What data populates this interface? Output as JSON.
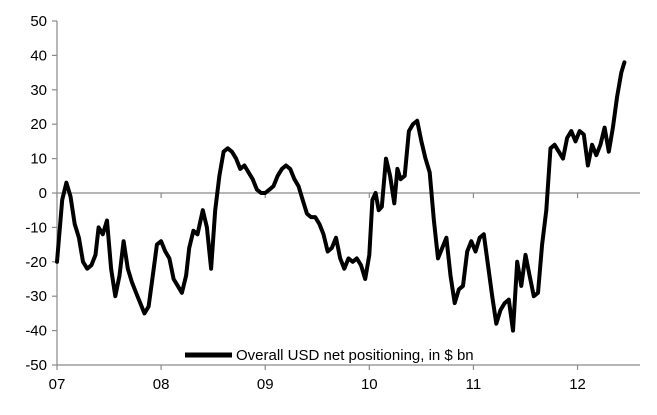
{
  "chart_data": {
    "type": "line",
    "title": "",
    "xlabel": "",
    "ylabel": "",
    "ylim": [
      -50,
      50
    ],
    "yticks": [
      50,
      40,
      30,
      20,
      10,
      0,
      -10,
      -20,
      -30,
      -40,
      -50
    ],
    "xlim": [
      2007.0,
      2012.6
    ],
    "xticks": [
      {
        "value": 2007.0,
        "label": "07"
      },
      {
        "value": 2008.0,
        "label": "08"
      },
      {
        "value": 2009.0,
        "label": "09"
      },
      {
        "value": 2010.0,
        "label": "10"
      },
      {
        "value": 2011.0,
        "label": "11"
      },
      {
        "value": 2012.0,
        "label": "12"
      }
    ],
    "grid": false,
    "legend_position": "bottom-center",
    "series": [
      {
        "name": "Overall USD net positioning, in $ bn",
        "color": "#000000",
        "points": [
          [
            2007.0,
            -20
          ],
          [
            2007.05,
            -2
          ],
          [
            2007.09,
            3
          ],
          [
            2007.13,
            -1
          ],
          [
            2007.17,
            -9
          ],
          [
            2007.21,
            -13
          ],
          [
            2007.25,
            -20
          ],
          [
            2007.29,
            -22
          ],
          [
            2007.33,
            -21
          ],
          [
            2007.37,
            -18
          ],
          [
            2007.4,
            -10
          ],
          [
            2007.44,
            -12
          ],
          [
            2007.48,
            -8
          ],
          [
            2007.52,
            -22
          ],
          [
            2007.56,
            -30
          ],
          [
            2007.6,
            -24
          ],
          [
            2007.64,
            -14
          ],
          [
            2007.68,
            -22
          ],
          [
            2007.72,
            -26
          ],
          [
            2007.76,
            -29
          ],
          [
            2007.8,
            -32
          ],
          [
            2007.84,
            -35
          ],
          [
            2007.88,
            -33
          ],
          [
            2007.92,
            -24
          ],
          [
            2007.96,
            -15
          ],
          [
            2008.0,
            -14
          ],
          [
            2008.04,
            -17
          ],
          [
            2008.08,
            -19
          ],
          [
            2008.12,
            -25
          ],
          [
            2008.16,
            -27
          ],
          [
            2008.2,
            -29
          ],
          [
            2008.24,
            -24
          ],
          [
            2008.27,
            -16
          ],
          [
            2008.31,
            -11
          ],
          [
            2008.35,
            -12
          ],
          [
            2008.4,
            -5
          ],
          [
            2008.44,
            -10
          ],
          [
            2008.48,
            -22
          ],
          [
            2008.52,
            -5
          ],
          [
            2008.56,
            5
          ],
          [
            2008.6,
            12
          ],
          [
            2008.64,
            13
          ],
          [
            2008.68,
            12
          ],
          [
            2008.72,
            10
          ],
          [
            2008.76,
            7
          ],
          [
            2008.8,
            8
          ],
          [
            2008.84,
            6
          ],
          [
            2008.88,
            4
          ],
          [
            2008.92,
            1
          ],
          [
            2008.96,
            0
          ],
          [
            2009.0,
            0
          ],
          [
            2009.04,
            1
          ],
          [
            2009.08,
            2
          ],
          [
            2009.12,
            5
          ],
          [
            2009.16,
            7
          ],
          [
            2009.2,
            8
          ],
          [
            2009.24,
            7
          ],
          [
            2009.28,
            4
          ],
          [
            2009.32,
            2
          ],
          [
            2009.36,
            -2
          ],
          [
            2009.4,
            -6
          ],
          [
            2009.44,
            -7
          ],
          [
            2009.48,
            -7
          ],
          [
            2009.52,
            -9
          ],
          [
            2009.56,
            -12
          ],
          [
            2009.6,
            -17
          ],
          [
            2009.64,
            -16
          ],
          [
            2009.68,
            -13
          ],
          [
            2009.72,
            -19
          ],
          [
            2009.76,
            -22
          ],
          [
            2009.8,
            -19
          ],
          [
            2009.84,
            -20
          ],
          [
            2009.88,
            -19
          ],
          [
            2009.92,
            -21
          ],
          [
            2009.96,
            -25
          ],
          [
            2010.0,
            -18
          ],
          [
            2010.03,
            -2
          ],
          [
            2010.06,
            0
          ],
          [
            2010.09,
            -5
          ],
          [
            2010.12,
            -4
          ],
          [
            2010.16,
            10
          ],
          [
            2010.2,
            5
          ],
          [
            2010.24,
            -3
          ],
          [
            2010.27,
            7
          ],
          [
            2010.3,
            4
          ],
          [
            2010.34,
            5
          ],
          [
            2010.38,
            18
          ],
          [
            2010.42,
            20
          ],
          [
            2010.46,
            21
          ],
          [
            2010.5,
            15
          ],
          [
            2010.54,
            10
          ],
          [
            2010.58,
            6
          ],
          [
            2010.62,
            -8
          ],
          [
            2010.66,
            -19
          ],
          [
            2010.7,
            -16
          ],
          [
            2010.74,
            -13
          ],
          [
            2010.78,
            -24
          ],
          [
            2010.82,
            -32
          ],
          [
            2010.86,
            -28
          ],
          [
            2010.9,
            -27
          ],
          [
            2010.94,
            -17
          ],
          [
            2010.98,
            -14
          ],
          [
            2011.02,
            -17
          ],
          [
            2011.06,
            -13
          ],
          [
            2011.1,
            -12
          ],
          [
            2011.14,
            -21
          ],
          [
            2011.18,
            -30
          ],
          [
            2011.22,
            -38
          ],
          [
            2011.26,
            -34
          ],
          [
            2011.3,
            -32
          ],
          [
            2011.34,
            -31
          ],
          [
            2011.38,
            -40
          ],
          [
            2011.42,
            -20
          ],
          [
            2011.46,
            -27
          ],
          [
            2011.5,
            -18
          ],
          [
            2011.54,
            -24
          ],
          [
            2011.58,
            -30
          ],
          [
            2011.62,
            -29
          ],
          [
            2011.66,
            -15
          ],
          [
            2011.7,
            -5
          ],
          [
            2011.74,
            13
          ],
          [
            2011.78,
            14
          ],
          [
            2011.82,
            12
          ],
          [
            2011.86,
            10
          ],
          [
            2011.9,
            16
          ],
          [
            2011.94,
            18
          ],
          [
            2011.98,
            15
          ],
          [
            2012.02,
            18
          ],
          [
            2012.06,
            17
          ],
          [
            2012.1,
            8
          ],
          [
            2012.14,
            14
          ],
          [
            2012.18,
            11
          ],
          [
            2012.22,
            14
          ],
          [
            2012.26,
            19
          ],
          [
            2012.3,
            12
          ],
          [
            2012.34,
            19
          ],
          [
            2012.38,
            28
          ],
          [
            2012.42,
            35
          ],
          [
            2012.45,
            38
          ]
        ]
      }
    ]
  }
}
